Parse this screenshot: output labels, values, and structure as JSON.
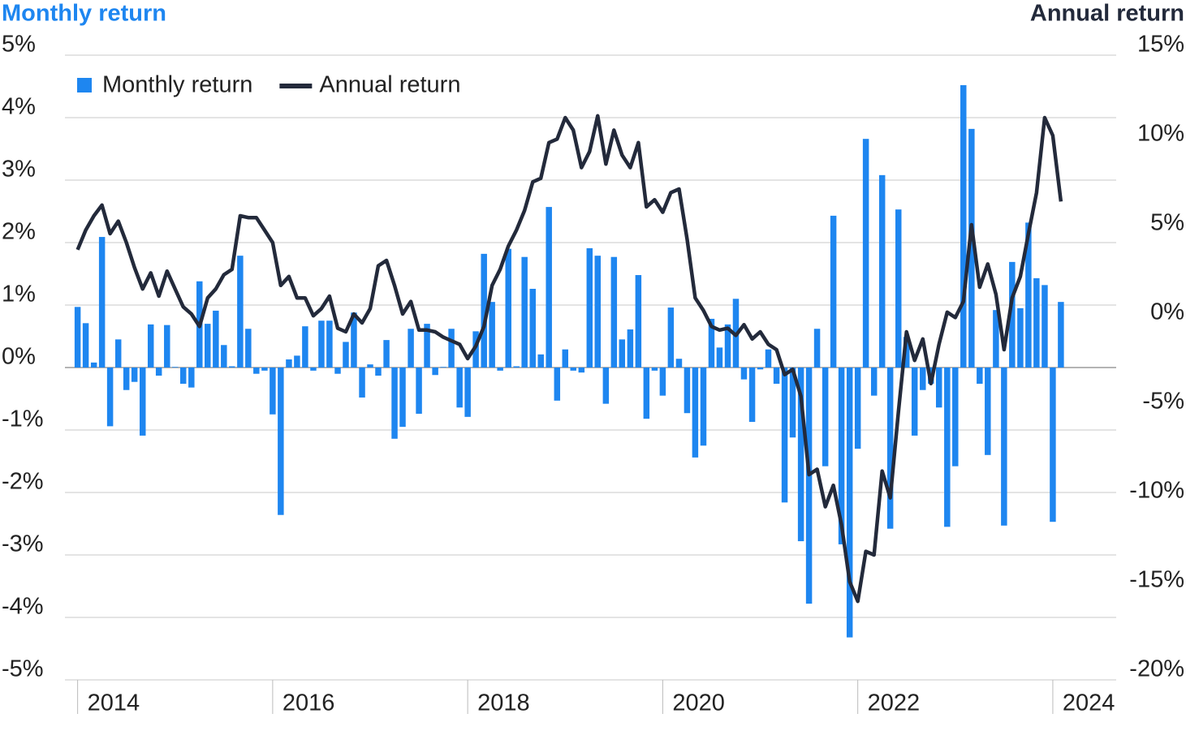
{
  "chart_data": {
    "type": "combo",
    "y_label": "Monthly return",
    "y2_label": "Annual return",
    "x": [
      2014,
      2014.083,
      2014.167,
      2014.25,
      2014.333,
      2014.417,
      2014.5,
      2014.583,
      2014.667,
      2014.75,
      2014.833,
      2014.917,
      2015,
      2015.083,
      2015.167,
      2015.25,
      2015.333,
      2015.417,
      2015.5,
      2015.583,
      2015.667,
      2015.75,
      2015.833,
      2015.917,
      2016,
      2016.083,
      2016.167,
      2016.25,
      2016.333,
      2016.417,
      2016.5,
      2016.583,
      2016.667,
      2016.75,
      2016.833,
      2016.917,
      2017,
      2017.083,
      2017.167,
      2017.25,
      2017.333,
      2017.417,
      2017.5,
      2017.583,
      2017.667,
      2017.75,
      2017.833,
      2017.917,
      2018,
      2018.083,
      2018.167,
      2018.25,
      2018.333,
      2018.417,
      2018.5,
      2018.583,
      2018.667,
      2018.75,
      2018.833,
      2018.917,
      2019,
      2019.083,
      2019.167,
      2019.25,
      2019.333,
      2019.417,
      2019.5,
      2019.583,
      2019.667,
      2019.75,
      2019.833,
      2019.917,
      2020,
      2020.083,
      2020.167,
      2020.25,
      2020.333,
      2020.417,
      2020.5,
      2020.583,
      2020.667,
      2020.75,
      2020.833,
      2020.917,
      2021,
      2021.083,
      2021.167,
      2021.25,
      2021.333,
      2021.417,
      2021.5,
      2021.583,
      2021.667,
      2021.75,
      2021.833,
      2021.917,
      2022,
      2022.083,
      2022.167,
      2022.25,
      2022.333,
      2022.417,
      2022.5,
      2022.583,
      2022.667,
      2022.75,
      2022.833,
      2022.917,
      2023,
      2023.083,
      2023.167,
      2023.25,
      2023.333,
      2023.417,
      2023.5,
      2023.583,
      2023.667,
      2023.75,
      2023.833,
      2023.917,
      2024,
      2024.083
    ],
    "series": [
      {
        "name": "Monthly return",
        "type": "bar",
        "axis": "y",
        "color": "#1e86f0",
        "values": [
          0.97,
          0.71,
          0.08,
          2.09,
          -0.94,
          0.45,
          -0.36,
          -0.23,
          -1.09,
          0.69,
          -0.13,
          0.68,
          0.01,
          -0.26,
          -0.32,
          1.38,
          0.7,
          0.91,
          0.36,
          0.02,
          1.79,
          0.62,
          -0.1,
          -0.05,
          -0.75,
          -2.36,
          0.13,
          0.19,
          0.66,
          -0.05,
          0.75,
          0.75,
          -0.1,
          0.41,
          0.88,
          -0.48,
          0.05,
          -0.13,
          0.44,
          -1.14,
          -0.95,
          0.62,
          -0.74,
          0.7,
          -0.12,
          0.01,
          0.62,
          -0.64,
          -0.79,
          0.58,
          1.82,
          1.05,
          -0.05,
          1.9,
          0.02,
          1.77,
          1.26,
          0.21,
          2.57,
          -0.53,
          0.29,
          -0.05,
          -0.08,
          1.91,
          1.79,
          -0.58,
          1.77,
          0.45,
          0.61,
          1.48,
          -0.82,
          -0.05,
          -0.45,
          0.96,
          0.14,
          -0.73,
          -1.44,
          -1.25,
          0.78,
          0.32,
          0.69,
          1.1,
          -0.19,
          -0.87,
          -0.03,
          0.29,
          -0.26,
          -2.16,
          -1.12,
          -2.78,
          -3.78,
          0.62,
          -1.58,
          2.43,
          -2.83,
          -4.32,
          -1.3,
          3.66,
          -0.45,
          3.08,
          -2.58,
          2.53,
          0.49,
          -1.09,
          -0.36,
          -0.26,
          -0.64,
          -2.55,
          -1.58,
          4.52,
          3.82,
          -0.26,
          -1.4,
          0.92,
          -2.53,
          1.69,
          0.95,
          2.32,
          1.43,
          1.32,
          -2.47,
          1.05
        ]
      },
      {
        "name": "Annual return",
        "type": "line",
        "axis": "y2",
        "color": "#232a3b",
        "values": [
          4.1,
          5.2,
          6.0,
          6.6,
          5.0,
          5.7,
          4.5,
          3.1,
          1.9,
          2.8,
          1.5,
          2.9,
          1.9,
          0.9,
          0.5,
          -0.2,
          1.4,
          1.9,
          2.7,
          3.0,
          6.0,
          5.9,
          5.9,
          5.2,
          4.5,
          2.1,
          2.6,
          1.4,
          1.4,
          0.4,
          0.8,
          1.5,
          -0.3,
          -0.5,
          0.5,
          0.0,
          0.8,
          3.2,
          3.5,
          2.1,
          0.5,
          1.2,
          -0.4,
          -0.4,
          -0.5,
          -0.8,
          -1.0,
          -1.2,
          -2.0,
          -1.3,
          -0.2,
          2.1,
          3.0,
          4.3,
          5.2,
          6.3,
          7.9,
          8.1,
          10.1,
          10.3,
          11.5,
          10.8,
          8.7,
          9.6,
          11.6,
          8.9,
          10.8,
          9.4,
          8.7,
          10.1,
          6.5,
          6.9,
          6.2,
          7.3,
          7.5,
          4.7,
          1.4,
          0.7,
          -0.2,
          -0.4,
          -0.3,
          -0.7,
          -0.1,
          -0.9,
          -0.5,
          -1.2,
          -1.5,
          -2.9,
          -2.6,
          -4.1,
          -8.5,
          -8.2,
          -10.3,
          -9.1,
          -11.3,
          -14.5,
          -15.6,
          -12.8,
          -13.0,
          -8.3,
          -9.8,
          -5.0,
          -0.5,
          -2.1,
          -0.9,
          -3.4,
          -1.2,
          0.6,
          0.3,
          1.2,
          5.5,
          2.0,
          3.3,
          1.6,
          -1.5,
          1.4,
          2.6,
          5.0,
          7.3,
          11.5,
          10.5,
          6.8
        ]
      }
    ],
    "xlim": [
      2013.87,
      2024.65
    ],
    "xticks": [
      2014,
      2016,
      2018,
      2020,
      2022,
      2024
    ],
    "ylim": [
      -5,
      5
    ],
    "yticks": [
      {
        "value": -5,
        "label": "-5%"
      },
      {
        "value": -4,
        "label": "-4%"
      },
      {
        "value": -3,
        "label": "-3%"
      },
      {
        "value": -2,
        "label": "-2%"
      },
      {
        "value": -1,
        "label": "-1%"
      },
      {
        "value": 0,
        "label": "0%"
      },
      {
        "value": 1,
        "label": "1%"
      },
      {
        "value": 2,
        "label": "2%"
      },
      {
        "value": 3,
        "label": "3%"
      },
      {
        "value": 4,
        "label": "4%"
      },
      {
        "value": 5,
        "label": "5%"
      }
    ],
    "y2lim": [
      -20,
      15
    ],
    "y2ticks": [
      {
        "value": -20,
        "label": "-20%"
      },
      {
        "value": -15,
        "label": "-15%"
      },
      {
        "value": -10,
        "label": "-10%"
      },
      {
        "value": -5,
        "label": "-5%"
      },
      {
        "value": 0,
        "label": "0%"
      },
      {
        "value": 5,
        "label": "5%"
      },
      {
        "value": 10,
        "label": "10%"
      },
      {
        "value": 15,
        "label": "15%"
      }
    ],
    "grid": true,
    "legend": "top-left"
  }
}
